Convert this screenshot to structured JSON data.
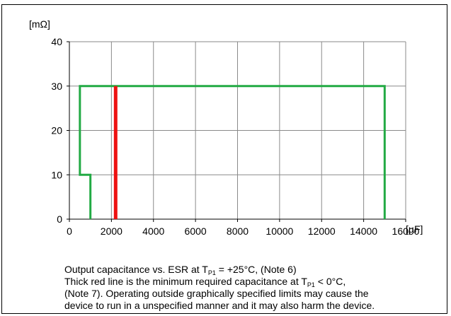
{
  "chart_data": {
    "type": "line",
    "title": "",
    "xlabel": "",
    "ylabel": "",
    "x_unit": "[µF]",
    "y_unit": "[mΩ]",
    "xlim": [
      0,
      16000
    ],
    "ylim": [
      0,
      40
    ],
    "x_ticks": [
      0,
      2000,
      4000,
      6000,
      8000,
      10000,
      12000,
      14000,
      16000
    ],
    "y_ticks": [
      0,
      10,
      20,
      30,
      40
    ],
    "grid": true,
    "series": [
      {
        "color": "#22aa44",
        "x": [
          1000,
          1000,
          500,
          500,
          15000,
          15000
        ],
        "y": [
          0,
          10,
          10,
          30,
          30,
          0
        ]
      },
      {
        "color": "#ee1111",
        "x": [
          2200,
          2200
        ],
        "y": [
          0,
          30
        ]
      }
    ]
  },
  "caption": {
    "line1_pre": "Output capacitance vs. ESR at T",
    "line1_sub": "P1",
    "line1_post": " = +25°C, (Note 6)",
    "line2_pre": "Thick red line is the minimum required capacitance at T",
    "line2_sub": "P1",
    "line2_post": " < 0°C,",
    "line3": "(Note 7). Operating outside graphically specified limits may cause the",
    "line4": "device to run in a unspecified manner and it may also harm the device."
  }
}
